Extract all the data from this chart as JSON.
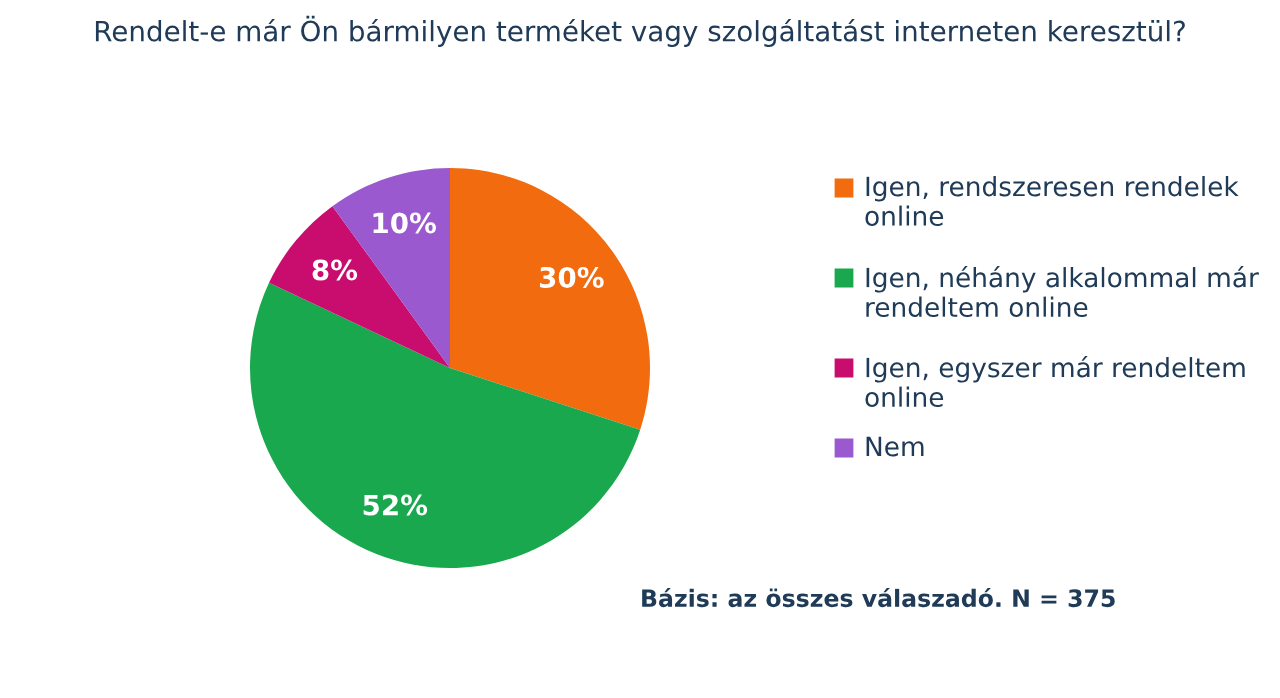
{
  "chart_data": {
    "type": "pie",
    "title": "Rendelt-e már Ön bármilyen terméket vagy szolgáltatást interneten keresztül?",
    "categories": [
      "Igen, rendszeresen rendelek online",
      "Igen, néhány alkalommal már rendeltem online",
      "Igen, egyszer már rendeltem online",
      "Nem"
    ],
    "values": [
      30,
      52,
      8,
      10
    ],
    "colors": [
      "#f26b0f",
      "#1aa84f",
      "#c80d6e",
      "#9b59d0"
    ],
    "value_labels": [
      "30%",
      "52%",
      "8%",
      "10%"
    ],
    "legend": "right",
    "annotations": [
      "Bázis: az összes válaszadó. N = 375"
    ]
  }
}
